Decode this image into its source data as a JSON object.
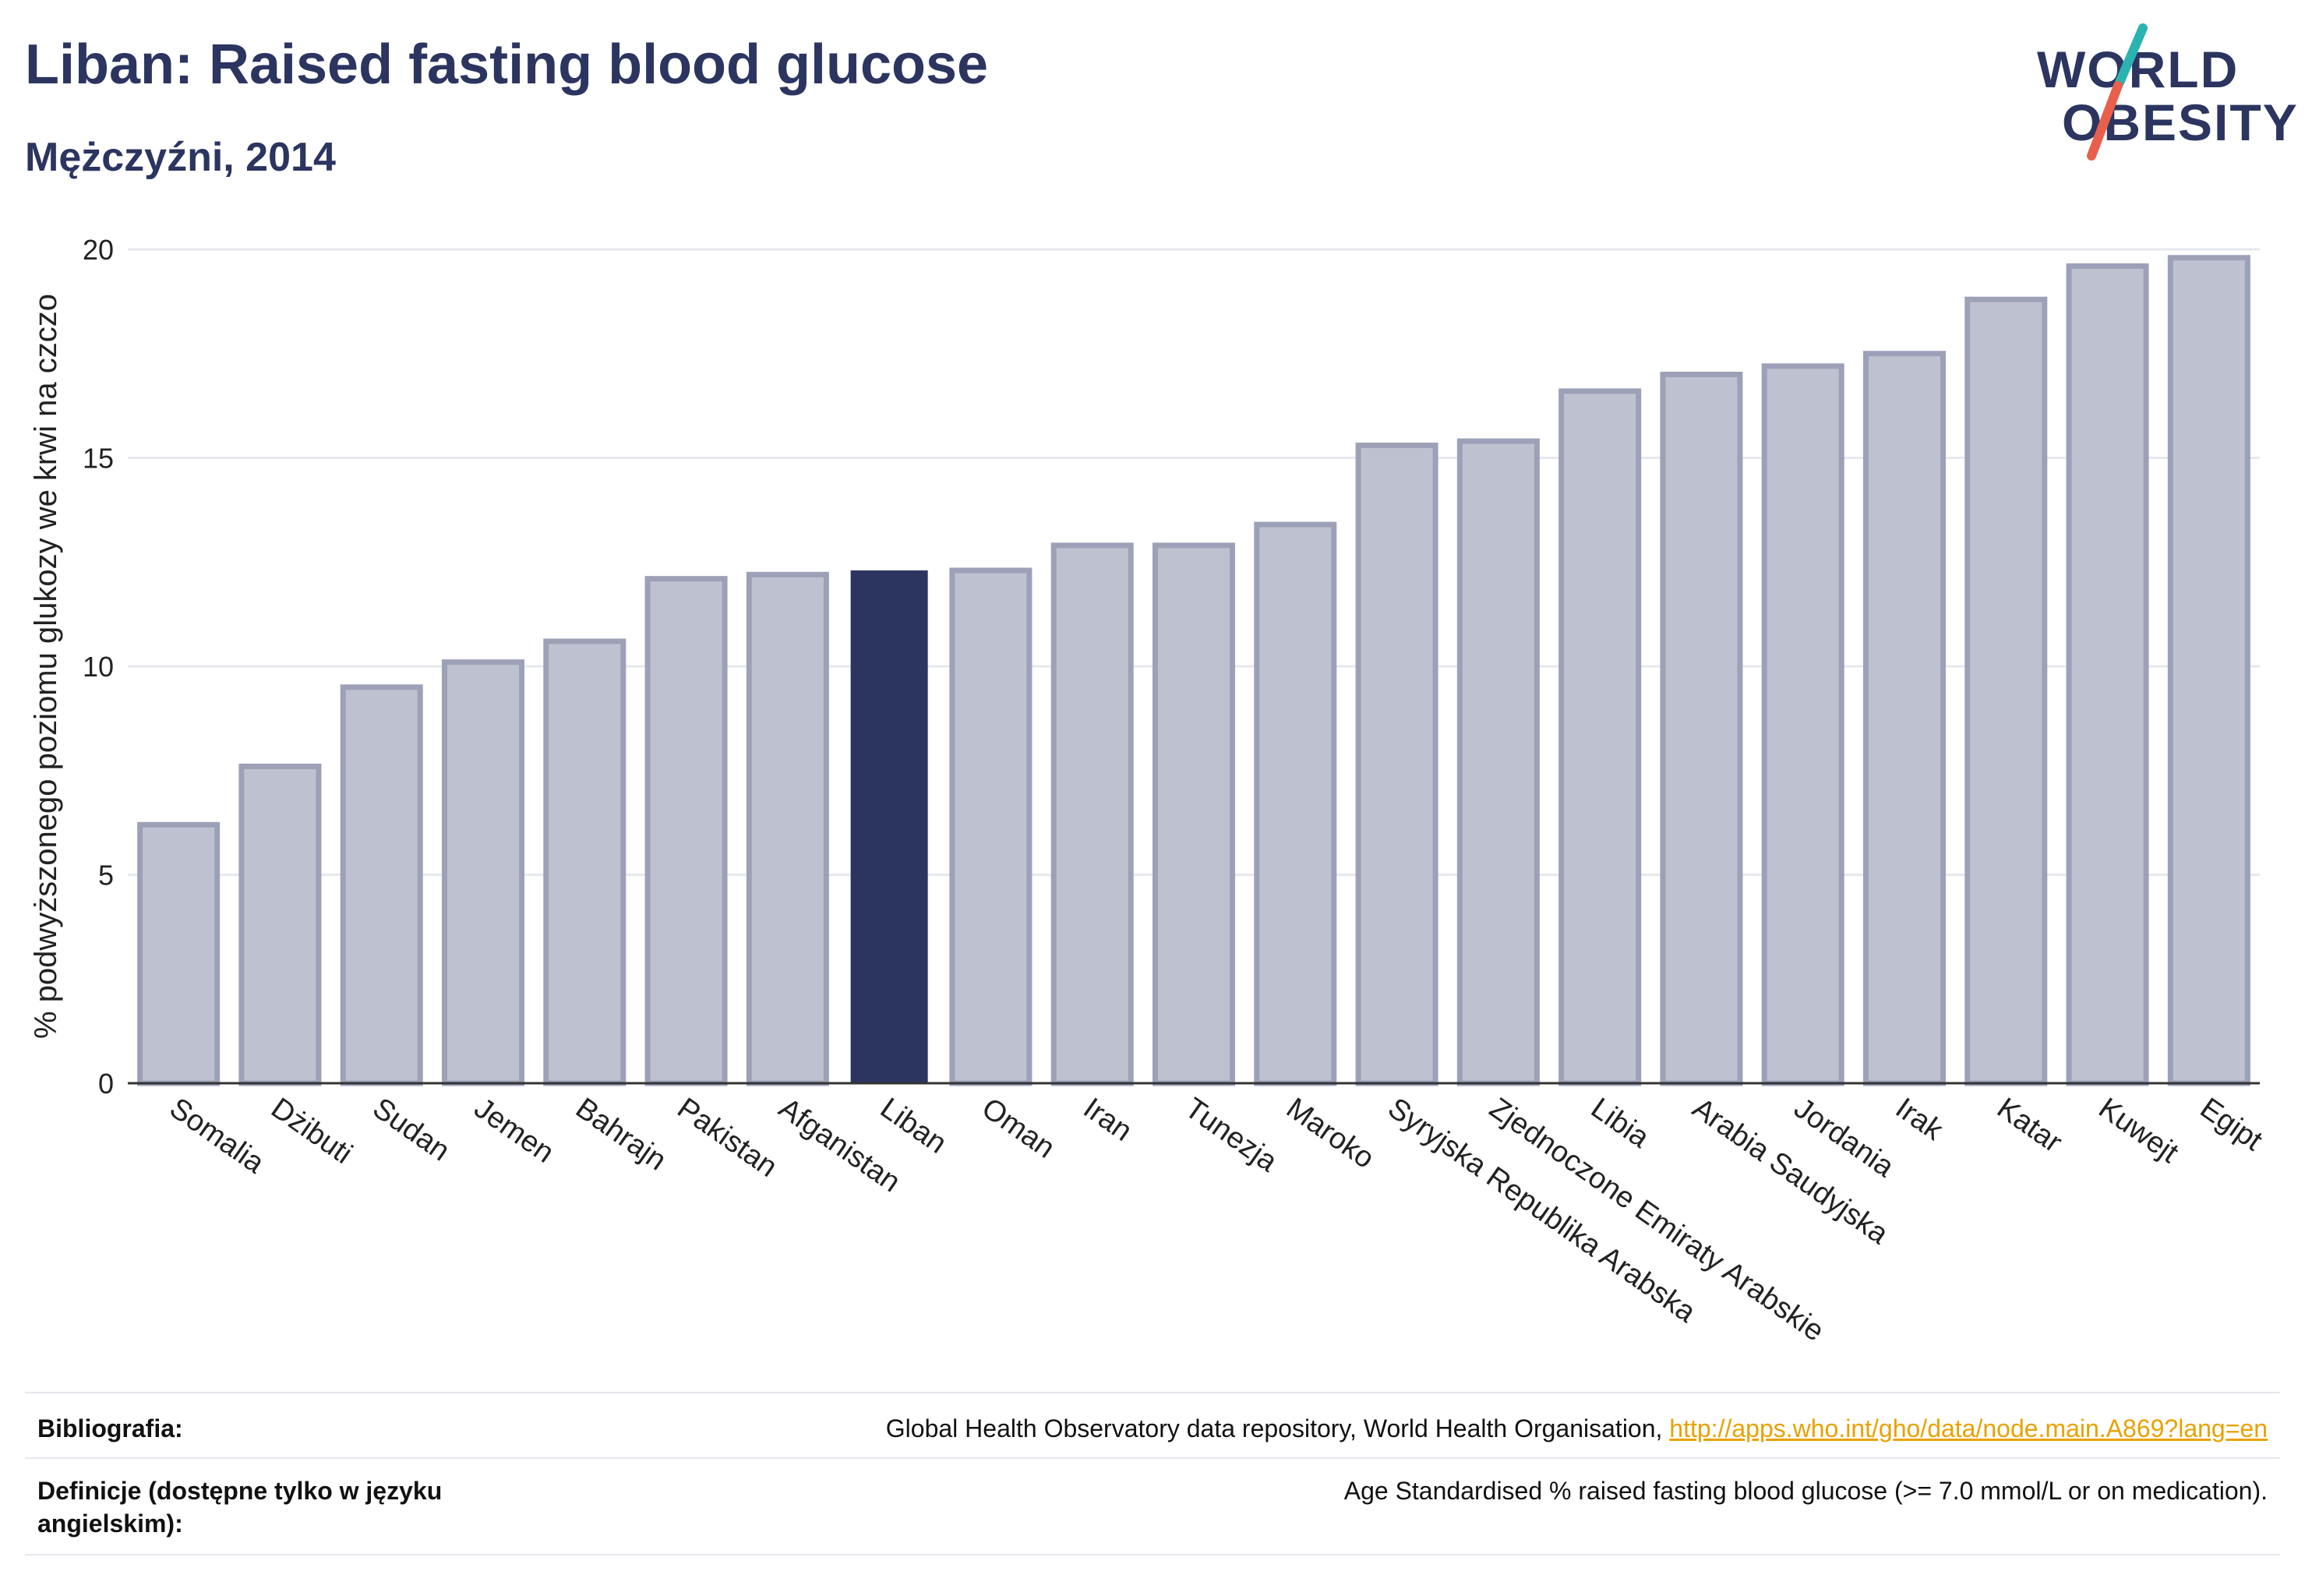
{
  "header": {
    "title": "Liban: Raised fasting blood glucose",
    "subtitle": "Mężczyźni, 2014"
  },
  "logo": {
    "line1": "WORLD",
    "line2": "OBESITY",
    "colors": {
      "text": "#2b3560",
      "slash_top": "#2bb3b1",
      "slash_bottom": "#e8604c"
    }
  },
  "colors": {
    "bar_fill": "#bec2d0",
    "bar_stroke": "#9ca1b8",
    "highlight_fill": "#2b3560",
    "grid": "#e6e8ef",
    "axis": "#333333"
  },
  "chart_data": {
    "type": "bar",
    "ylabel": "% podwyższonego poziomu glukozy we krwi na czczo",
    "xlabel": "",
    "ylim": [
      0,
      20
    ],
    "yticks": [
      0,
      5,
      10,
      15,
      20
    ],
    "grid": true,
    "highlight": "Liban",
    "categories": [
      "Somalia",
      "Dżibuti",
      "Sudan",
      "Jemen",
      "Bahrajn",
      "Pakistan",
      "Afganistan",
      "Liban",
      "Oman",
      "Iran",
      "Tunezja",
      "Maroko",
      "Syryjska Republika Arabska",
      "Zjednoczone Emiraty Arabskie",
      "Libia",
      "Arabia Saudyjska",
      "Jordania",
      "Irak",
      "Katar",
      "Kuwejt",
      "Egipt"
    ],
    "values": [
      6.2,
      7.6,
      9.5,
      10.1,
      10.6,
      12.1,
      12.2,
      12.3,
      12.3,
      12.9,
      12.9,
      13.4,
      15.3,
      15.4,
      16.6,
      17.0,
      17.2,
      17.5,
      18.8,
      19.6,
      19.8
    ]
  },
  "footer": {
    "bibliography_label": "Bibliografia:",
    "bibliography_text": "Global Health Observatory data repository, World Health Organisation, ",
    "bibliography_link": "http://apps.who.int/gho/data/node.main.A869?lang=en",
    "definitions_label": "Definicje (dostępne tylko w języku angielskim):",
    "definitions_text": "Age Standardised % raised fasting blood glucose (>= 7.0 mmol/L or on medication)."
  }
}
